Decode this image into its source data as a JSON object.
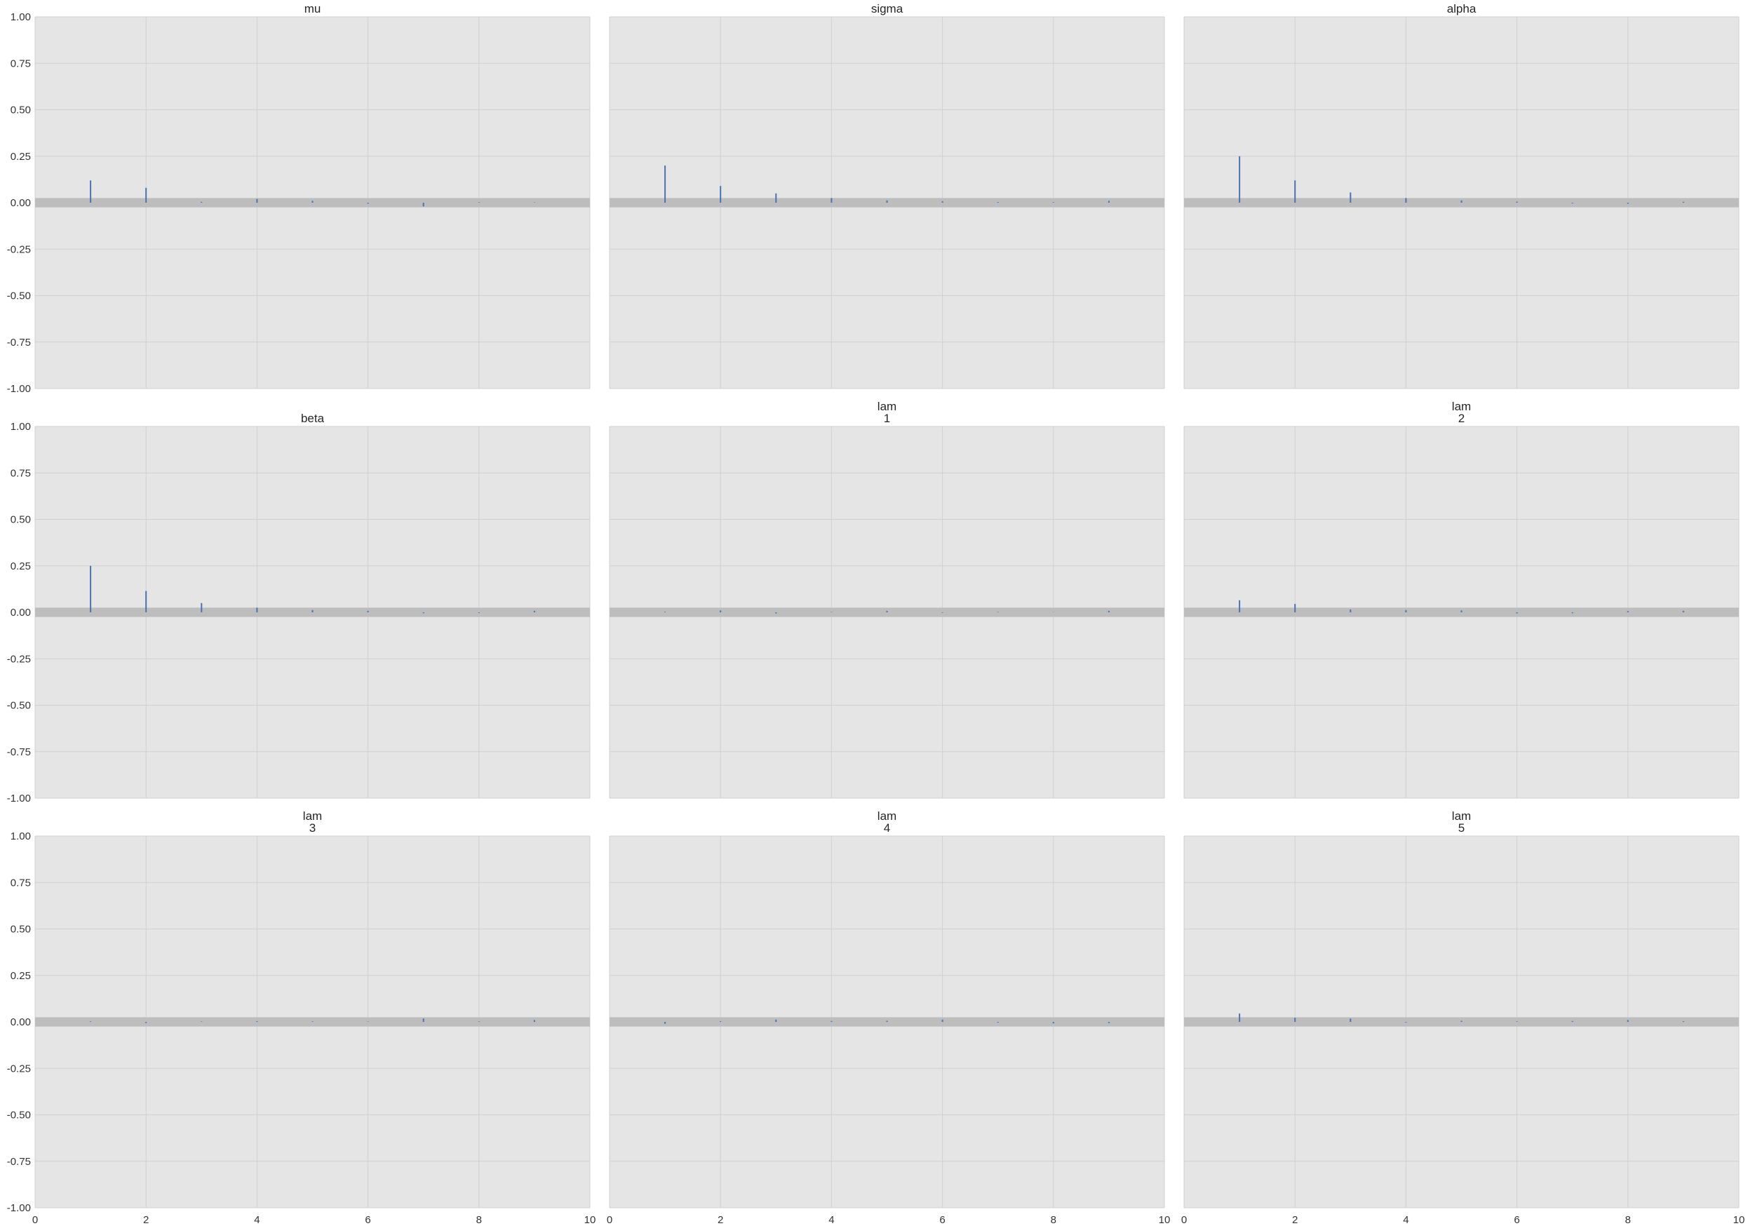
{
  "figure": {
    "title": "",
    "colors": {
      "panel_background": "#e5e5e5",
      "grid": "#d0d0d0",
      "bar": "#4c72b0",
      "confidence_band": "#bdbdbd",
      "text": "#262626"
    }
  },
  "chart_data": [
    {
      "type": "bar",
      "title": [
        "mu"
      ],
      "xlim": [
        0,
        10
      ],
      "ylim": [
        -1,
        1
      ],
      "xticks": [
        "0",
        "2",
        "4",
        "6",
        "8",
        "10"
      ],
      "yticks": [
        "-1.00",
        "-0.75",
        "-0.50",
        "-0.25",
        "0.00",
        "0.25",
        "0.50",
        "0.75",
        "1.00"
      ],
      "show_xtick_labels": false,
      "show_ytick_labels": true,
      "grid": true,
      "confidence_band": [
        -0.025,
        0.025
      ],
      "x": [
        1,
        2,
        3,
        4,
        5,
        6,
        7,
        8,
        9
      ],
      "values": [
        0.12,
        0.08,
        0.005,
        0.02,
        0.01,
        -0.005,
        -0.02,
        0.003,
        0.002
      ]
    },
    {
      "type": "bar",
      "title": [
        "sigma"
      ],
      "xlim": [
        0,
        10
      ],
      "ylim": [
        -1,
        1
      ],
      "xticks": [
        "0",
        "2",
        "4",
        "6",
        "8",
        "10"
      ],
      "yticks": [
        "-1.00",
        "-0.75",
        "-0.50",
        "-0.25",
        "0.00",
        "0.25",
        "0.50",
        "0.75",
        "1.00"
      ],
      "show_xtick_labels": false,
      "show_ytick_labels": false,
      "grid": true,
      "confidence_band": [
        -0.025,
        0.025
      ],
      "x": [
        1,
        2,
        3,
        4,
        5,
        6,
        7,
        8,
        9
      ],
      "values": [
        0.2,
        0.09,
        0.05,
        0.025,
        0.012,
        0.008,
        0.004,
        0.003,
        0.01
      ]
    },
    {
      "type": "bar",
      "title": [
        "alpha"
      ],
      "xlim": [
        0,
        10
      ],
      "ylim": [
        -1,
        1
      ],
      "xticks": [
        "0",
        "2",
        "4",
        "6",
        "8",
        "10"
      ],
      "yticks": [
        "-1.00",
        "-0.75",
        "-0.50",
        "-0.25",
        "0.00",
        "0.25",
        "0.50",
        "0.75",
        "1.00"
      ],
      "show_xtick_labels": false,
      "show_ytick_labels": false,
      "grid": true,
      "confidence_band": [
        -0.025,
        0.025
      ],
      "x": [
        1,
        2,
        3,
        4,
        5,
        6,
        7,
        8,
        9
      ],
      "values": [
        0.25,
        0.12,
        0.055,
        0.025,
        0.012,
        0.006,
        -0.004,
        -0.006,
        0.005
      ]
    },
    {
      "type": "bar",
      "title": [
        "beta"
      ],
      "xlim": [
        0,
        10
      ],
      "ylim": [
        -1,
        1
      ],
      "xticks": [
        "0",
        "2",
        "4",
        "6",
        "8",
        "10"
      ],
      "yticks": [
        "-1.00",
        "-0.75",
        "-0.50",
        "-0.25",
        "0.00",
        "0.25",
        "0.50",
        "0.75",
        "1.00"
      ],
      "show_xtick_labels": false,
      "show_ytick_labels": true,
      "grid": true,
      "confidence_band": [
        -0.025,
        0.025
      ],
      "x": [
        1,
        2,
        3,
        4,
        5,
        6,
        7,
        8,
        9
      ],
      "values": [
        0.25,
        0.115,
        0.05,
        0.025,
        0.012,
        0.008,
        -0.005,
        -0.004,
        0.008
      ]
    },
    {
      "type": "bar",
      "title": [
        "lam",
        "1"
      ],
      "xlim": [
        0,
        10
      ],
      "ylim": [
        -1,
        1
      ],
      "xticks": [
        "0",
        "2",
        "4",
        "6",
        "8",
        "10"
      ],
      "yticks": [
        "-1.00",
        "-0.75",
        "-0.50",
        "-0.25",
        "0.00",
        "0.25",
        "0.50",
        "0.75",
        "1.00"
      ],
      "show_xtick_labels": false,
      "show_ytick_labels": false,
      "grid": true,
      "confidence_band": [
        -0.025,
        0.025
      ],
      "x": [
        1,
        2,
        3,
        4,
        5,
        6,
        7,
        8,
        9
      ],
      "values": [
        0.003,
        0.01,
        -0.006,
        0.002,
        0.008,
        -0.003,
        0.002,
        0.001,
        0.008
      ]
    },
    {
      "type": "bar",
      "title": [
        "lam",
        "2"
      ],
      "xlim": [
        0,
        10
      ],
      "ylim": [
        -1,
        1
      ],
      "xticks": [
        "0",
        "2",
        "4",
        "6",
        "8",
        "10"
      ],
      "yticks": [
        "-1.00",
        "-0.75",
        "-0.50",
        "-0.25",
        "0.00",
        "0.25",
        "0.50",
        "0.75",
        "1.00"
      ],
      "show_xtick_labels": false,
      "show_ytick_labels": false,
      "grid": true,
      "confidence_band": [
        -0.025,
        0.025
      ],
      "x": [
        1,
        2,
        3,
        4,
        5,
        6,
        7,
        8,
        9
      ],
      "values": [
        0.065,
        0.045,
        0.015,
        0.012,
        0.01,
        -0.006,
        -0.005,
        0.007,
        0.008
      ]
    },
    {
      "type": "bar",
      "title": [
        "lam",
        "3"
      ],
      "xlim": [
        0,
        10
      ],
      "ylim": [
        -1,
        1
      ],
      "xticks": [
        "0",
        "2",
        "4",
        "6",
        "8",
        "10"
      ],
      "yticks": [
        "-1.00",
        "-0.75",
        "-0.50",
        "-0.25",
        "0.00",
        "0.25",
        "0.50",
        "0.75",
        "1.00"
      ],
      "show_xtick_labels": true,
      "show_ytick_labels": true,
      "grid": true,
      "confidence_band": [
        -0.025,
        0.025
      ],
      "x": [
        1,
        2,
        3,
        4,
        5,
        6,
        7,
        8,
        9
      ],
      "values": [
        0.003,
        -0.006,
        0.002,
        0.004,
        0.003,
        0.002,
        0.018,
        0.003,
        0.01
      ]
    },
    {
      "type": "bar",
      "title": [
        "lam",
        "4"
      ],
      "xlim": [
        0,
        10
      ],
      "ylim": [
        -1,
        1
      ],
      "xticks": [
        "0",
        "2",
        "4",
        "6",
        "8",
        "10"
      ],
      "yticks": [
        "-1.00",
        "-0.75",
        "-0.50",
        "-0.25",
        "0.00",
        "0.25",
        "0.50",
        "0.75",
        "1.00"
      ],
      "show_xtick_labels": true,
      "show_ytick_labels": false,
      "grid": true,
      "confidence_band": [
        -0.025,
        0.025
      ],
      "x": [
        1,
        2,
        3,
        4,
        5,
        6,
        7,
        8,
        9
      ],
      "values": [
        -0.01,
        0.004,
        0.012,
        0.005,
        0.006,
        0.012,
        -0.004,
        -0.008,
        -0.006
      ]
    },
    {
      "type": "bar",
      "title": [
        "lam",
        "5"
      ],
      "xlim": [
        0,
        10
      ],
      "ylim": [
        -1,
        1
      ],
      "xticks": [
        "0",
        "2",
        "4",
        "6",
        "8",
        "10"
      ],
      "yticks": [
        "-1.00",
        "-0.75",
        "-0.50",
        "-0.25",
        "0.00",
        "0.25",
        "0.50",
        "0.75",
        "1.00"
      ],
      "show_xtick_labels": true,
      "show_ytick_labels": false,
      "grid": true,
      "confidence_band": [
        -0.025,
        0.025
      ],
      "x": [
        1,
        2,
        3,
        4,
        5,
        6,
        7,
        8,
        9
      ],
      "values": [
        0.045,
        0.022,
        0.018,
        -0.004,
        0.006,
        0.003,
        0.005,
        0.01,
        0.004
      ]
    }
  ]
}
